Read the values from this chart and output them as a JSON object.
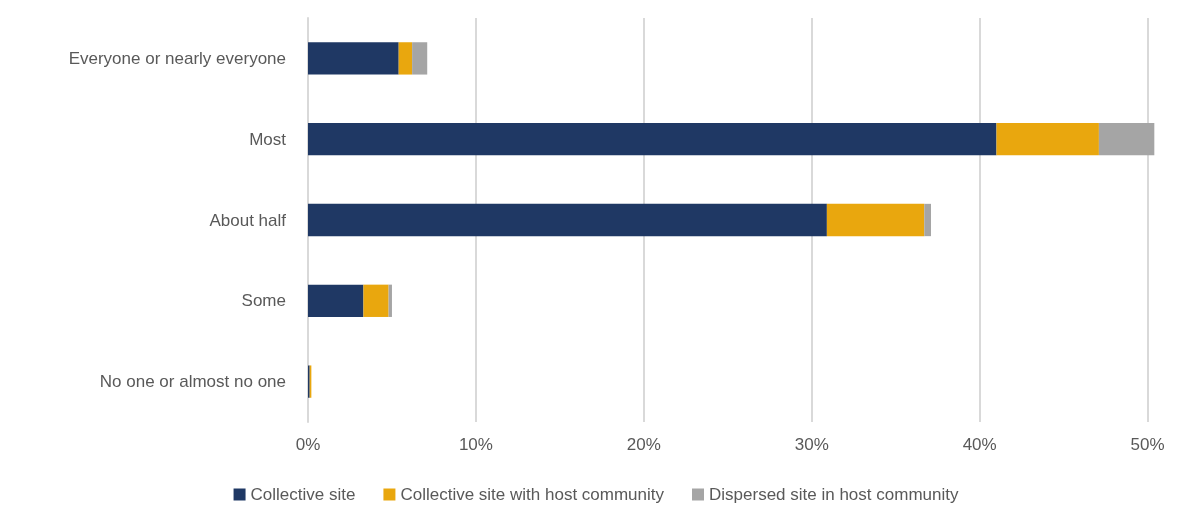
{
  "chart_data": {
    "type": "bar",
    "orientation": "horizontal",
    "stacked": true,
    "categories": [
      "Everyone or nearly everyone",
      "Most",
      "About half",
      "Some",
      "No one or almost no one"
    ],
    "series": [
      {
        "name": "Collective site",
        "color": "#1f3864",
        "values": [
          5.4,
          41.0,
          30.9,
          3.3,
          0.1
        ]
      },
      {
        "name": "Collective site with host community",
        "color": "#e9a70e",
        "values": [
          0.8,
          6.1,
          5.8,
          1.5,
          0.1
        ]
      },
      {
        "name": "Dispersed site in host community",
        "color": "#a5a5a5",
        "values": [
          0.9,
          3.3,
          0.4,
          0.2,
          0
        ]
      }
    ],
    "xlim": [
      0,
      50.5
    ],
    "xticks": [
      {
        "value": 0,
        "label": "0%"
      },
      {
        "value": 10,
        "label": "10%"
      },
      {
        "value": 20,
        "label": "20%"
      },
      {
        "value": 30,
        "label": "30%"
      },
      {
        "value": 40,
        "label": "40%"
      },
      {
        "value": 50,
        "label": "50%"
      }
    ],
    "grid": "x",
    "legend": "bottom"
  }
}
